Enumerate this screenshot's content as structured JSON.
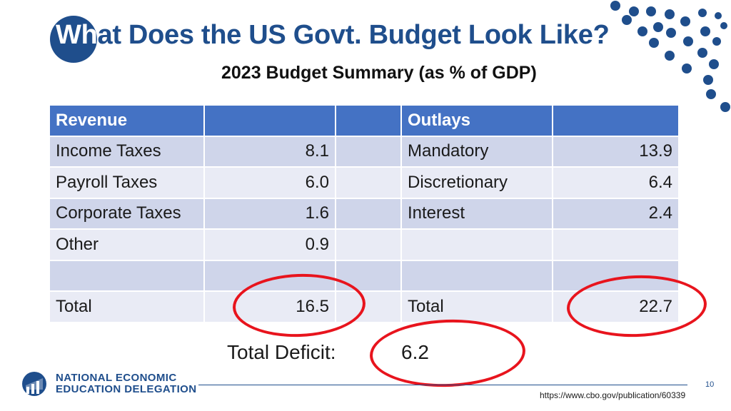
{
  "slide": {
    "title_lead": "Wh",
    "title_rest": "at Does the US Govt. Budget Look Like?",
    "subtitle": "2023 Budget Summary (as % of GDP)",
    "page_number": "10",
    "source": "https://www.cbo.gov/publication/60339"
  },
  "table": {
    "header": [
      "Revenue",
      "",
      "",
      "Outlays",
      ""
    ],
    "rows": [
      [
        "Income Taxes",
        "8.1",
        "",
        "Mandatory",
        "13.9"
      ],
      [
        "Payroll Taxes",
        "6.0",
        "",
        "Discretionary",
        "6.4"
      ],
      [
        "Corporate Taxes",
        "1.6",
        "",
        "Interest",
        "2.4"
      ],
      [
        "Other",
        "0.9",
        "",
        "",
        ""
      ],
      [
        "",
        "",
        "",
        "",
        ""
      ],
      [
        "Total",
        "16.5",
        "",
        "Total",
        "22.7"
      ]
    ]
  },
  "deficit": {
    "label": "Total Deficit:",
    "value": "6.2"
  },
  "logo": {
    "line1": "NATIONAL ECONOMIC",
    "line2": "EDUCATION DELEGATION"
  },
  "colors": {
    "brand_blue": "#1f4e8c",
    "header_blue": "#4472c4",
    "row_dark": "#cfd5ea",
    "row_light": "#e9ebf5",
    "highlight_red": "#e8141d"
  }
}
